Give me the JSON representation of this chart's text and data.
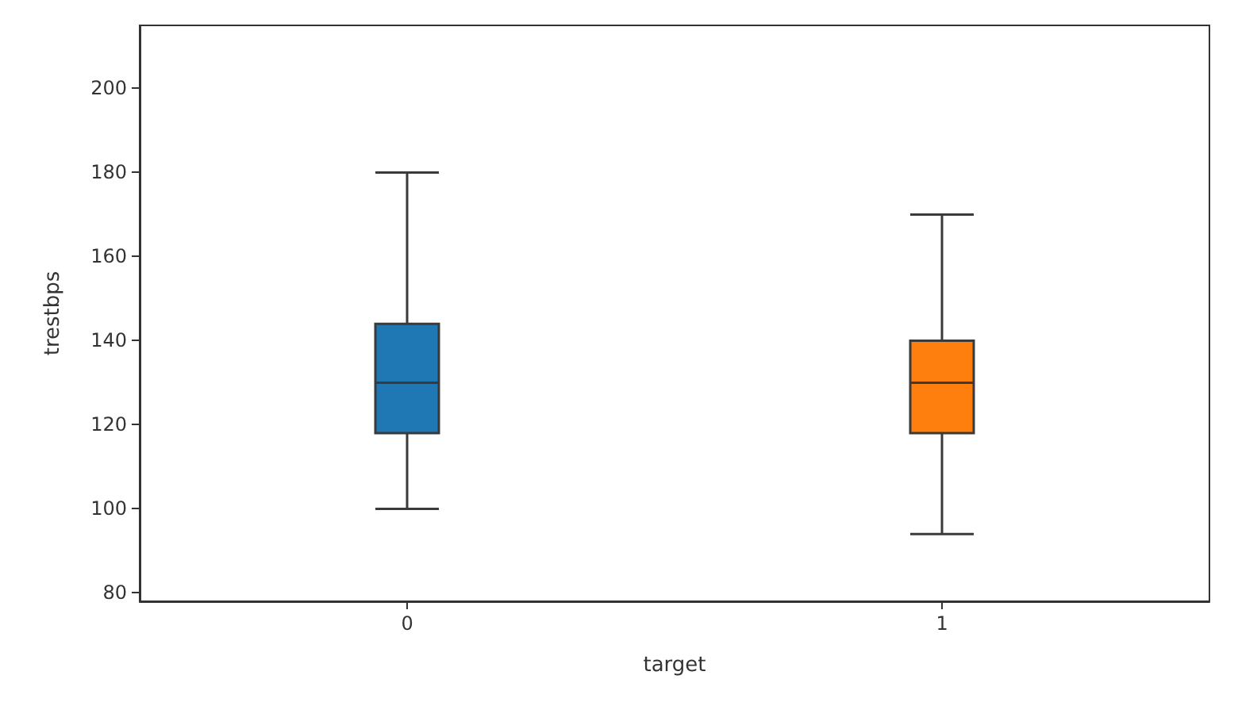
{
  "chart_data": {
    "type": "box",
    "xlabel": "target",
    "ylabel": "trestbps",
    "categories": [
      "0",
      "1"
    ],
    "boxes": [
      {
        "low": 100,
        "q1": 118,
        "median": 130,
        "q3": 144,
        "high": 180
      },
      {
        "low": 94,
        "q1": 118,
        "median": 130,
        "q3": 140,
        "high": 170
      }
    ],
    "colors": [
      "#1f77b4",
      "#ff7f0e"
    ],
    "ylim": [
      78,
      215
    ],
    "yticks": [
      80,
      100,
      120,
      140,
      160,
      180,
      200
    ],
    "grid": false
  }
}
